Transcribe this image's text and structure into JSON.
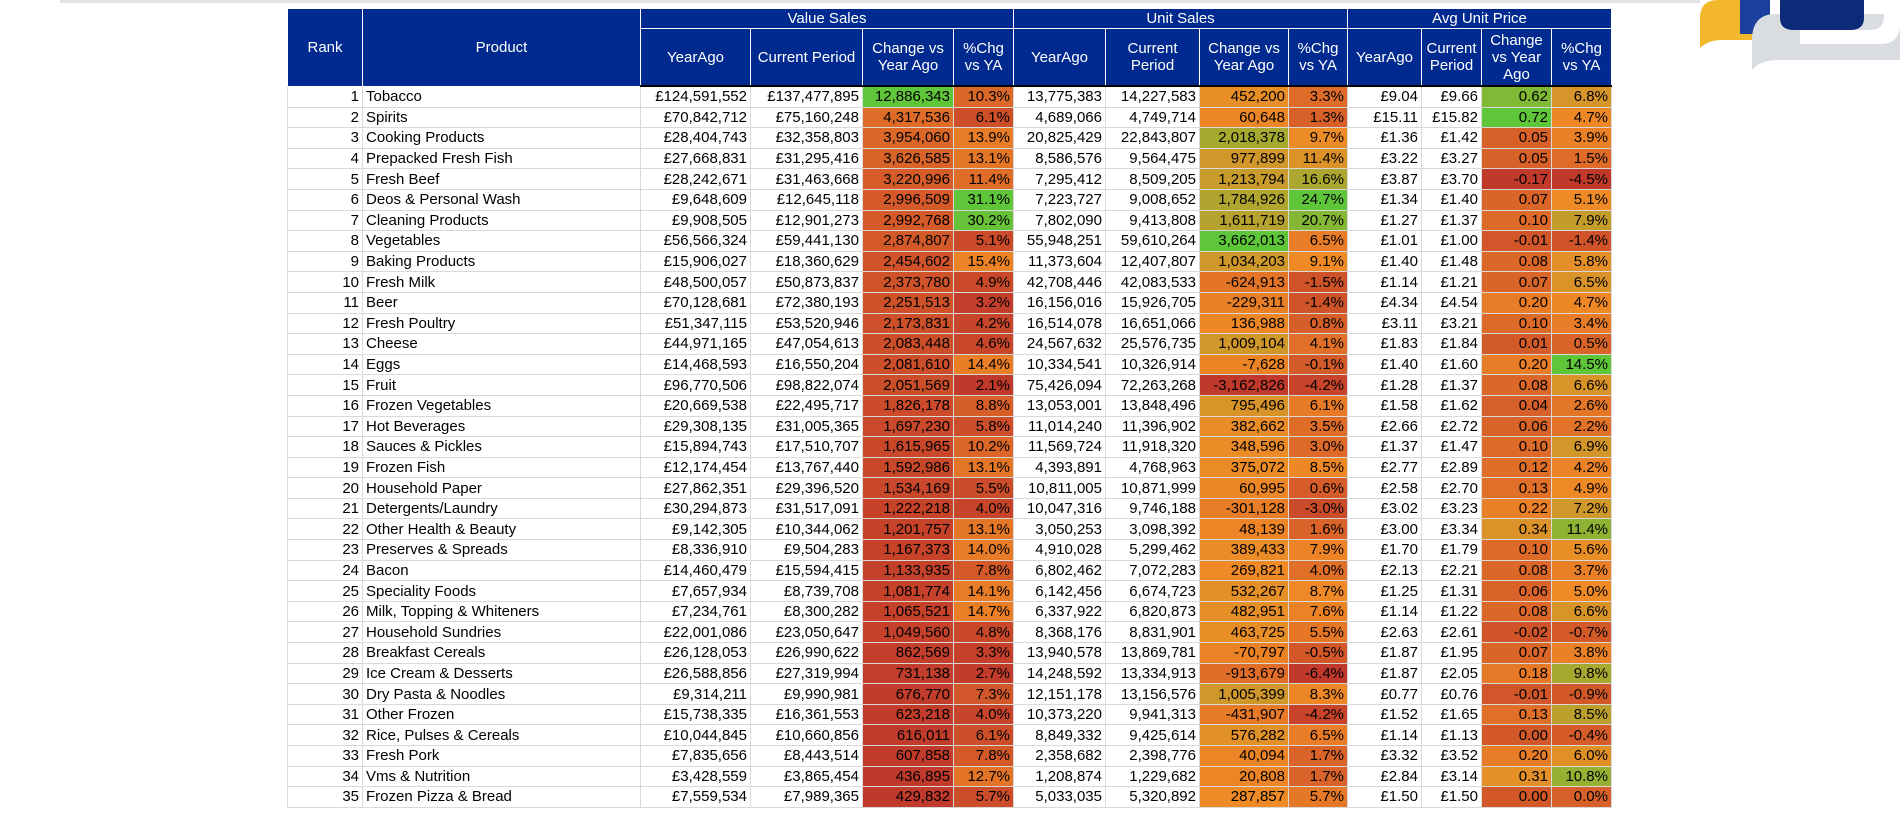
{
  "header": {
    "rank": "Rank",
    "product": "Product",
    "groups": [
      "Value Sales",
      "Unit Sales",
      "Avg Unit Price"
    ],
    "value_cols": [
      "YearAgo",
      "Current Period",
      "Change vs Year Ago",
      "%Chg vs YA"
    ],
    "unit_cols": [
      "YearAgo",
      "Current Period",
      "Change vs Year Ago",
      "%Chg vs YA"
    ],
    "price_cols": [
      "YearAgo",
      "Current Period",
      "Change vs Year Ago",
      "%Chg vs YA"
    ]
  },
  "colors": {
    "header_bg": "#002a8f",
    "header_text": "#ffffff",
    "scale_red": "#c0392b",
    "scale_orange": "#f08a26",
    "scale_green": "#5fc63a",
    "logo_yellow": "#f2b72b",
    "logo_navy": "#0b2a78",
    "logo_gray": "#d9dde2"
  },
  "rows": [
    {
      "rank": 1,
      "product": "Tobacco",
      "v_ya": "£124,591,552",
      "v_cp": "£137,477,895",
      "v_chg": "12,886,343",
      "v_pct": "10.3%",
      "u_ya": "13,775,383",
      "u_cp": "14,227,583",
      "u_chg": "452,200",
      "u_pct": "3.3%",
      "p_ya": "£9.04",
      "p_cp": "£9.66",
      "p_chg": "0.62",
      "p_pct": "6.8%"
    },
    {
      "rank": 2,
      "product": "Spirits",
      "v_ya": "£70,842,712",
      "v_cp": "£75,160,248",
      "v_chg": "4,317,536",
      "v_pct": "6.1%",
      "u_ya": "4,689,066",
      "u_cp": "4,749,714",
      "u_chg": "60,648",
      "u_pct": "1.3%",
      "p_ya": "£15.11",
      "p_cp": "£15.82",
      "p_chg": "0.72",
      "p_pct": "4.7%"
    },
    {
      "rank": 3,
      "product": "Cooking Products",
      "v_ya": "£28,404,743",
      "v_cp": "£32,358,803",
      "v_chg": "3,954,060",
      "v_pct": "13.9%",
      "u_ya": "20,825,429",
      "u_cp": "22,843,807",
      "u_chg": "2,018,378",
      "u_pct": "9.7%",
      "p_ya": "£1.36",
      "p_cp": "£1.42",
      "p_chg": "0.05",
      "p_pct": "3.9%"
    },
    {
      "rank": 4,
      "product": "Prepacked Fresh Fish",
      "v_ya": "£27,668,831",
      "v_cp": "£31,295,416",
      "v_chg": "3,626,585",
      "v_pct": "13.1%",
      "u_ya": "8,586,576",
      "u_cp": "9,564,475",
      "u_chg": "977,899",
      "u_pct": "11.4%",
      "p_ya": "£3.22",
      "p_cp": "£3.27",
      "p_chg": "0.05",
      "p_pct": "1.5%"
    },
    {
      "rank": 5,
      "product": "Fresh Beef",
      "v_ya": "£28,242,671",
      "v_cp": "£31,463,668",
      "v_chg": "3,220,996",
      "v_pct": "11.4%",
      "u_ya": "7,295,412",
      "u_cp": "8,509,205",
      "u_chg": "1,213,794",
      "u_pct": "16.6%",
      "p_ya": "£3.87",
      "p_cp": "£3.70",
      "p_chg": "-0.17",
      "p_pct": "-4.5%"
    },
    {
      "rank": 6,
      "product": "Deos & Personal Wash",
      "v_ya": "£9,648,609",
      "v_cp": "£12,645,118",
      "v_chg": "2,996,509",
      "v_pct": "31.1%",
      "u_ya": "7,223,727",
      "u_cp": "9,008,652",
      "u_chg": "1,784,926",
      "u_pct": "24.7%",
      "p_ya": "£1.34",
      "p_cp": "£1.40",
      "p_chg": "0.07",
      "p_pct": "5.1%"
    },
    {
      "rank": 7,
      "product": "Cleaning Products",
      "v_ya": "£9,908,505",
      "v_cp": "£12,901,273",
      "v_chg": "2,992,768",
      "v_pct": "30.2%",
      "u_ya": "7,802,090",
      "u_cp": "9,413,808",
      "u_chg": "1,611,719",
      "u_pct": "20.7%",
      "p_ya": "£1.27",
      "p_cp": "£1.37",
      "p_chg": "0.10",
      "p_pct": "7.9%"
    },
    {
      "rank": 8,
      "product": "Vegetables",
      "v_ya": "£56,566,324",
      "v_cp": "£59,441,130",
      "v_chg": "2,874,807",
      "v_pct": "5.1%",
      "u_ya": "55,948,251",
      "u_cp": "59,610,264",
      "u_chg": "3,662,013",
      "u_pct": "6.5%",
      "p_ya": "£1.01",
      "p_cp": "£1.00",
      "p_chg": "-0.01",
      "p_pct": "-1.4%"
    },
    {
      "rank": 9,
      "product": "Baking Products",
      "v_ya": "£15,906,027",
      "v_cp": "£18,360,629",
      "v_chg": "2,454,602",
      "v_pct": "15.4%",
      "u_ya": "11,373,604",
      "u_cp": "12,407,807",
      "u_chg": "1,034,203",
      "u_pct": "9.1%",
      "p_ya": "£1.40",
      "p_cp": "£1.48",
      "p_chg": "0.08",
      "p_pct": "5.8%"
    },
    {
      "rank": 10,
      "product": "Fresh Milk",
      "v_ya": "£48,500,057",
      "v_cp": "£50,873,837",
      "v_chg": "2,373,780",
      "v_pct": "4.9%",
      "u_ya": "42,708,446",
      "u_cp": "42,083,533",
      "u_chg": "-624,913",
      "u_pct": "-1.5%",
      "p_ya": "£1.14",
      "p_cp": "£1.21",
      "p_chg": "0.07",
      "p_pct": "6.5%"
    },
    {
      "rank": 11,
      "product": "Beer",
      "v_ya": "£70,128,681",
      "v_cp": "£72,380,193",
      "v_chg": "2,251,513",
      "v_pct": "3.2%",
      "u_ya": "16,156,016",
      "u_cp": "15,926,705",
      "u_chg": "-229,311",
      "u_pct": "-1.4%",
      "p_ya": "£4.34",
      "p_cp": "£4.54",
      "p_chg": "0.20",
      "p_pct": "4.7%"
    },
    {
      "rank": 12,
      "product": "Fresh Poultry",
      "v_ya": "£51,347,115",
      "v_cp": "£53,520,946",
      "v_chg": "2,173,831",
      "v_pct": "4.2%",
      "u_ya": "16,514,078",
      "u_cp": "16,651,066",
      "u_chg": "136,988",
      "u_pct": "0.8%",
      "p_ya": "£3.11",
      "p_cp": "£3.21",
      "p_chg": "0.10",
      "p_pct": "3.4%"
    },
    {
      "rank": 13,
      "product": "Cheese",
      "v_ya": "£44,971,165",
      "v_cp": "£47,054,613",
      "v_chg": "2,083,448",
      "v_pct": "4.6%",
      "u_ya": "24,567,632",
      "u_cp": "25,576,735",
      "u_chg": "1,009,104",
      "u_pct": "4.1%",
      "p_ya": "£1.83",
      "p_cp": "£1.84",
      "p_chg": "0.01",
      "p_pct": "0.5%"
    },
    {
      "rank": 14,
      "product": "Eggs",
      "v_ya": "£14,468,593",
      "v_cp": "£16,550,204",
      "v_chg": "2,081,610",
      "v_pct": "14.4%",
      "u_ya": "10,334,541",
      "u_cp": "10,326,914",
      "u_chg": "-7,628",
      "u_pct": "-0.1%",
      "p_ya": "£1.40",
      "p_cp": "£1.60",
      "p_chg": "0.20",
      "p_pct": "14.5%"
    },
    {
      "rank": 15,
      "product": "Fruit",
      "v_ya": "£96,770,506",
      "v_cp": "£98,822,074",
      "v_chg": "2,051,569",
      "v_pct": "2.1%",
      "u_ya": "75,426,094",
      "u_cp": "72,263,268",
      "u_chg": "-3,162,826",
      "u_pct": "-4.2%",
      "p_ya": "£1.28",
      "p_cp": "£1.37",
      "p_chg": "0.08",
      "p_pct": "6.6%"
    },
    {
      "rank": 16,
      "product": "Frozen Vegetables",
      "v_ya": "£20,669,538",
      "v_cp": "£22,495,717",
      "v_chg": "1,826,178",
      "v_pct": "8.8%",
      "u_ya": "13,053,001",
      "u_cp": "13,848,496",
      "u_chg": "795,496",
      "u_pct": "6.1%",
      "p_ya": "£1.58",
      "p_cp": "£1.62",
      "p_chg": "0.04",
      "p_pct": "2.6%"
    },
    {
      "rank": 17,
      "product": "Hot Beverages",
      "v_ya": "£29,308,135",
      "v_cp": "£31,005,365",
      "v_chg": "1,697,230",
      "v_pct": "5.8%",
      "u_ya": "11,014,240",
      "u_cp": "11,396,902",
      "u_chg": "382,662",
      "u_pct": "3.5%",
      "p_ya": "£2.66",
      "p_cp": "£2.72",
      "p_chg": "0.06",
      "p_pct": "2.2%"
    },
    {
      "rank": 18,
      "product": "Sauces & Pickles",
      "v_ya": "£15,894,743",
      "v_cp": "£17,510,707",
      "v_chg": "1,615,965",
      "v_pct": "10.2%",
      "u_ya": "11,569,724",
      "u_cp": "11,918,320",
      "u_chg": "348,596",
      "u_pct": "3.0%",
      "p_ya": "£1.37",
      "p_cp": "£1.47",
      "p_chg": "0.10",
      "p_pct": "6.9%"
    },
    {
      "rank": 19,
      "product": "Frozen Fish",
      "v_ya": "£12,174,454",
      "v_cp": "£13,767,440",
      "v_chg": "1,592,986",
      "v_pct": "13.1%",
      "u_ya": "4,393,891",
      "u_cp": "4,768,963",
      "u_chg": "375,072",
      "u_pct": "8.5%",
      "p_ya": "£2.77",
      "p_cp": "£2.89",
      "p_chg": "0.12",
      "p_pct": "4.2%"
    },
    {
      "rank": 20,
      "product": "Household Paper",
      "v_ya": "£27,862,351",
      "v_cp": "£29,396,520",
      "v_chg": "1,534,169",
      "v_pct": "5.5%",
      "u_ya": "10,811,005",
      "u_cp": "10,871,999",
      "u_chg": "60,995",
      "u_pct": "0.6%",
      "p_ya": "£2.58",
      "p_cp": "£2.70",
      "p_chg": "0.13",
      "p_pct": "4.9%"
    },
    {
      "rank": 21,
      "product": "Detergents/Laundry",
      "v_ya": "£30,294,873",
      "v_cp": "£31,517,091",
      "v_chg": "1,222,218",
      "v_pct": "4.0%",
      "u_ya": "10,047,316",
      "u_cp": "9,746,188",
      "u_chg": "-301,128",
      "u_pct": "-3.0%",
      "p_ya": "£3.02",
      "p_cp": "£3.23",
      "p_chg": "0.22",
      "p_pct": "7.2%"
    },
    {
      "rank": 22,
      "product": "Other Health & Beauty",
      "v_ya": "£9,142,305",
      "v_cp": "£10,344,062",
      "v_chg": "1,201,757",
      "v_pct": "13.1%",
      "u_ya": "3,050,253",
      "u_cp": "3,098,392",
      "u_chg": "48,139",
      "u_pct": "1.6%",
      "p_ya": "£3.00",
      "p_cp": "£3.34",
      "p_chg": "0.34",
      "p_pct": "11.4%"
    },
    {
      "rank": 23,
      "product": "Preserves & Spreads",
      "v_ya": "£8,336,910",
      "v_cp": "£9,504,283",
      "v_chg": "1,167,373",
      "v_pct": "14.0%",
      "u_ya": "4,910,028",
      "u_cp": "5,299,462",
      "u_chg": "389,433",
      "u_pct": "7.9%",
      "p_ya": "£1.70",
      "p_cp": "£1.79",
      "p_chg": "0.10",
      "p_pct": "5.6%"
    },
    {
      "rank": 24,
      "product": "Bacon",
      "v_ya": "£14,460,479",
      "v_cp": "£15,594,415",
      "v_chg": "1,133,935",
      "v_pct": "7.8%",
      "u_ya": "6,802,462",
      "u_cp": "7,072,283",
      "u_chg": "269,821",
      "u_pct": "4.0%",
      "p_ya": "£2.13",
      "p_cp": "£2.21",
      "p_chg": "0.08",
      "p_pct": "3.7%"
    },
    {
      "rank": 25,
      "product": "Speciality Foods",
      "v_ya": "£7,657,934",
      "v_cp": "£8,739,708",
      "v_chg": "1,081,774",
      "v_pct": "14.1%",
      "u_ya": "6,142,456",
      "u_cp": "6,674,723",
      "u_chg": "532,267",
      "u_pct": "8.7%",
      "p_ya": "£1.25",
      "p_cp": "£1.31",
      "p_chg": "0.06",
      "p_pct": "5.0%"
    },
    {
      "rank": 26,
      "product": "Milk, Topping & Whiteners",
      "v_ya": "£7,234,761",
      "v_cp": "£8,300,282",
      "v_chg": "1,065,521",
      "v_pct": "14.7%",
      "u_ya": "6,337,922",
      "u_cp": "6,820,873",
      "u_chg": "482,951",
      "u_pct": "7.6%",
      "p_ya": "£1.14",
      "p_cp": "£1.22",
      "p_chg": "0.08",
      "p_pct": "6.6%"
    },
    {
      "rank": 27,
      "product": "Household Sundries",
      "v_ya": "£22,001,086",
      "v_cp": "£23,050,647",
      "v_chg": "1,049,560",
      "v_pct": "4.8%",
      "u_ya": "8,368,176",
      "u_cp": "8,831,901",
      "u_chg": "463,725",
      "u_pct": "5.5%",
      "p_ya": "£2.63",
      "p_cp": "£2.61",
      "p_chg": "-0.02",
      "p_pct": "-0.7%"
    },
    {
      "rank": 28,
      "product": "Breakfast Cereals",
      "v_ya": "£26,128,053",
      "v_cp": "£26,990,622",
      "v_chg": "862,569",
      "v_pct": "3.3%",
      "u_ya": "13,940,578",
      "u_cp": "13,869,781",
      "u_chg": "-70,797",
      "u_pct": "-0.5%",
      "p_ya": "£1.87",
      "p_cp": "£1.95",
      "p_chg": "0.07",
      "p_pct": "3.8%"
    },
    {
      "rank": 29,
      "product": "Ice Cream & Desserts",
      "v_ya": "£26,588,856",
      "v_cp": "£27,319,994",
      "v_chg": "731,138",
      "v_pct": "2.7%",
      "u_ya": "14,248,592",
      "u_cp": "13,334,913",
      "u_chg": "-913,679",
      "u_pct": "-6.4%",
      "p_ya": "£1.87",
      "p_cp": "£2.05",
      "p_chg": "0.18",
      "p_pct": "9.8%"
    },
    {
      "rank": 30,
      "product": "Dry Pasta & Noodles",
      "v_ya": "£9,314,211",
      "v_cp": "£9,990,981",
      "v_chg": "676,770",
      "v_pct": "7.3%",
      "u_ya": "12,151,178",
      "u_cp": "13,156,576",
      "u_chg": "1,005,399",
      "u_pct": "8.3%",
      "p_ya": "£0.77",
      "p_cp": "£0.76",
      "p_chg": "-0.01",
      "p_pct": "-0.9%"
    },
    {
      "rank": 31,
      "product": "Other Frozen",
      "v_ya": "£15,738,335",
      "v_cp": "£16,361,553",
      "v_chg": "623,218",
      "v_pct": "4.0%",
      "u_ya": "10,373,220",
      "u_cp": "9,941,313",
      "u_chg": "-431,907",
      "u_pct": "-4.2%",
      "p_ya": "£1.52",
      "p_cp": "£1.65",
      "p_chg": "0.13",
      "p_pct": "8.5%"
    },
    {
      "rank": 32,
      "product": "Rice, Pulses & Cereals",
      "v_ya": "£10,044,845",
      "v_cp": "£10,660,856",
      "v_chg": "616,011",
      "v_pct": "6.1%",
      "u_ya": "8,849,332",
      "u_cp": "9,425,614",
      "u_chg": "576,282",
      "u_pct": "6.5%",
      "p_ya": "£1.14",
      "p_cp": "£1.13",
      "p_chg": "0.00",
      "p_pct": "-0.4%"
    },
    {
      "rank": 33,
      "product": "Fresh Pork",
      "v_ya": "£7,835,656",
      "v_cp": "£8,443,514",
      "v_chg": "607,858",
      "v_pct": "7.8%",
      "u_ya": "2,358,682",
      "u_cp": "2,398,776",
      "u_chg": "40,094",
      "u_pct": "1.7%",
      "p_ya": "£3.32",
      "p_cp": "£3.52",
      "p_chg": "0.20",
      "p_pct": "6.0%"
    },
    {
      "rank": 34,
      "product": "Vms & Nutrition",
      "v_ya": "£3,428,559",
      "v_cp": "£3,865,454",
      "v_chg": "436,895",
      "v_pct": "12.7%",
      "u_ya": "1,208,874",
      "u_cp": "1,229,682",
      "u_chg": "20,808",
      "u_pct": "1.7%",
      "p_ya": "£2.84",
      "p_cp": "£3.14",
      "p_chg": "0.31",
      "p_pct": "10.8%"
    },
    {
      "rank": 35,
      "product": "Frozen Pizza & Bread",
      "v_ya": "£7,559,534",
      "v_cp": "£7,989,365",
      "v_chg": "429,832",
      "v_pct": "5.7%",
      "u_ya": "5,033,035",
      "u_cp": "5,320,892",
      "u_chg": "287,857",
      "u_pct": "5.7%",
      "p_ya": "£1.50",
      "p_cp": "£1.50",
      "p_chg": "0.00",
      "p_pct": "0.0%"
    }
  ]
}
